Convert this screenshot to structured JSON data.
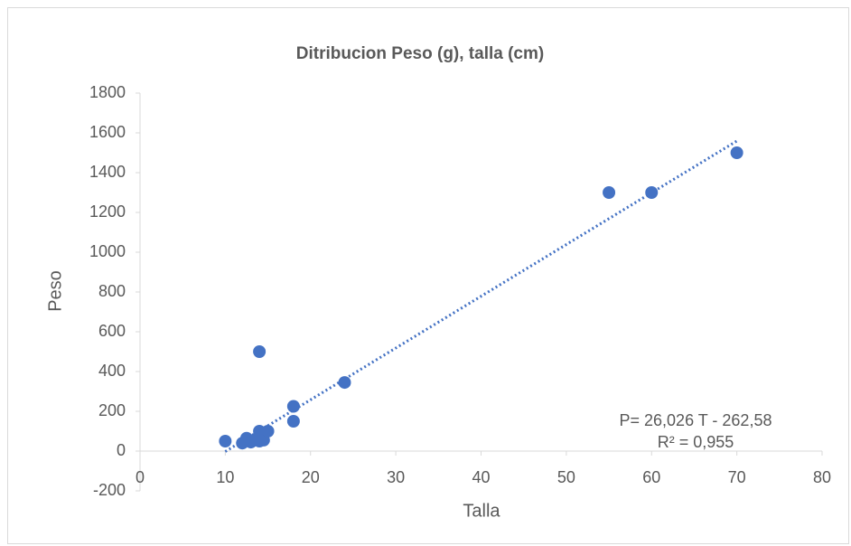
{
  "chart_data": {
    "type": "scatter",
    "title": "Ditribucion Peso (g), talla (cm)",
    "x_label": "Talla",
    "y_label": "Peso",
    "series": [
      {
        "name": "Peso",
        "color": "#4472c4",
        "x": [
          10,
          12,
          12.5,
          13,
          13.5,
          14,
          14,
          14,
          14.5,
          15,
          18,
          18,
          24,
          55,
          60,
          70
        ],
        "values": [
          50,
          40,
          65,
          45,
          55,
          100,
          50,
          500,
          55,
          100,
          150,
          225,
          345,
          1300,
          1300,
          1500
        ]
      }
    ],
    "trendline": {
      "slope": 26.026,
      "intercept": -262.58,
      "x_range": [
        10,
        70
      ],
      "color": "#4472c4",
      "equation": "P= 26,026 T - 262,58",
      "r2": "R² = 0,955"
    },
    "xlim": [
      0,
      80
    ],
    "xticks": [
      0,
      10,
      20,
      30,
      40,
      50,
      60,
      70,
      80
    ],
    "ylim": [
      -200,
      1800
    ],
    "yticks": [
      -200,
      0,
      200,
      400,
      600,
      800,
      1000,
      1200,
      1400,
      1600,
      1800
    ],
    "grid": false
  }
}
